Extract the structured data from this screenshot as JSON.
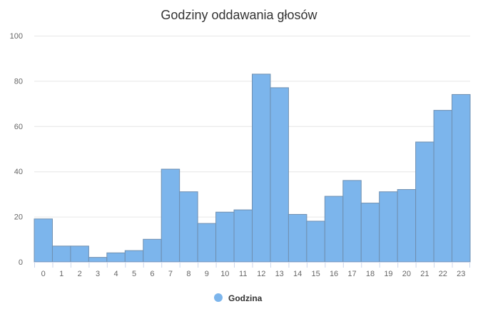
{
  "chart_data": {
    "type": "bar",
    "title": "Godziny oddawania głosów",
    "categories": [
      "0",
      "1",
      "2",
      "3",
      "4",
      "5",
      "6",
      "7",
      "8",
      "9",
      "10",
      "11",
      "12",
      "13",
      "14",
      "15",
      "16",
      "17",
      "18",
      "19",
      "20",
      "21",
      "22",
      "23"
    ],
    "series": [
      {
        "name": "Godzina",
        "color": "#7cb5ec",
        "values": [
          19,
          7,
          7,
          2,
          4,
          5,
          10,
          41,
          31,
          17,
          22,
          23,
          83,
          77,
          21,
          18,
          29,
          36,
          26,
          31,
          32,
          53,
          67,
          74
        ]
      }
    ],
    "y_ticks": [
      "0",
      "20",
      "40",
      "60",
      "80",
      "100"
    ],
    "ylim": [
      0,
      100
    ],
    "grid": true,
    "legend_position": "bottom-center"
  }
}
